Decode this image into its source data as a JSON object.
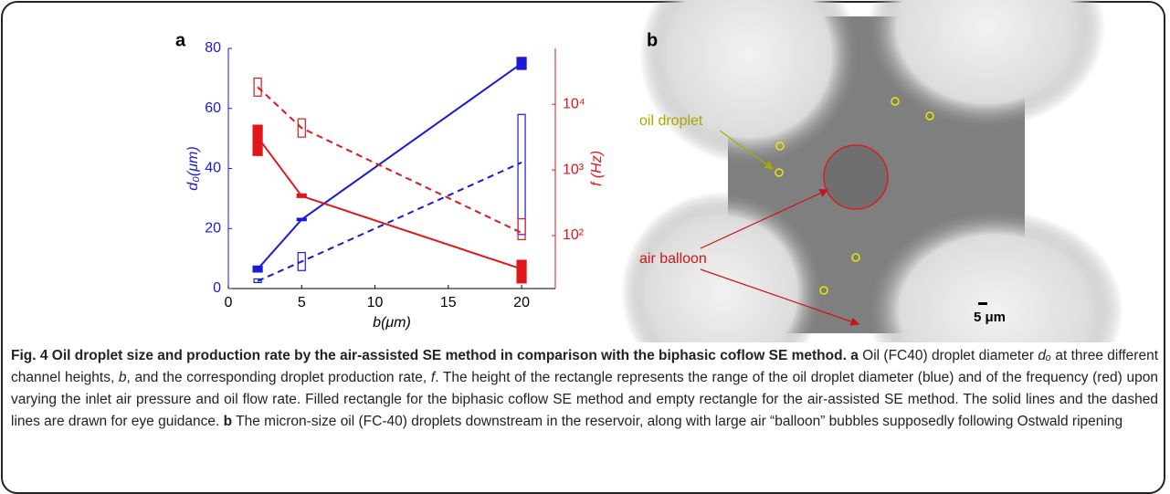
{
  "chart_data": {
    "type": "line",
    "panel_label": "a",
    "x": [
      2,
      5,
      20
    ],
    "xlim": [
      0,
      22.3
    ],
    "xticks": [
      0,
      5,
      10,
      15,
      20
    ],
    "xlabel": "b(μm)",
    "ylim": [
      0,
      80
    ],
    "yticks": [
      0,
      20,
      40,
      60,
      80
    ],
    "ylabel": "d₀(μm)",
    "ycolor": "#1a1ad6",
    "y2lim": [
      15.6,
      71000
    ],
    "y2scale": "log",
    "y2ticks": [
      {
        "value": 100,
        "label": "10²"
      },
      {
        "value": 1000,
        "label": "10³"
      },
      {
        "value": 10000,
        "label": "10⁴"
      }
    ],
    "y2label": "f (Hz)",
    "y2color": "#e0161b",
    "series": [
      {
        "color": "#1a1ad6",
        "style": "solid",
        "filled": true,
        "values": [
          6.5,
          23,
          75
        ],
        "low": [
          5.5,
          22.6,
          73
        ],
        "high": [
          7.5,
          23.4,
          77
        ]
      },
      {
        "color": "#1a1ad6",
        "style": "dashed",
        "filled": false,
        "values": [
          2.5,
          9,
          42
        ],
        "low": [
          2,
          6,
          18
        ],
        "high": [
          3.2,
          12,
          58
        ]
      },
      {
        "color": "#e0161b",
        "style": "solid",
        "filled": true,
        "axis": "y2",
        "values": [
          3160,
          400,
          31
        ],
        "low": [
          1660,
          380,
          19
        ],
        "high": [
          4800,
          430,
          42
        ]
      },
      {
        "color": "#e0161b",
        "style": "dashed",
        "filled": false,
        "axis": "y2",
        "values": [
          18300,
          4350,
          110
        ],
        "low": [
          13300,
          3160,
          87
        ],
        "high": [
          25000,
          6000,
          180
        ]
      }
    ]
  },
  "image": {
    "panel_label": "b",
    "oil_label": "oil droplet",
    "air_label": "air balloon",
    "scale_label": "5 μm"
  },
  "caption": {
    "runs": [
      {
        "text": "Fig. 4 Oil droplet size and production rate by the air-assisted SE method in comparison with the biphasic coflow SE method.",
        "style": "bold"
      },
      {
        "text": " a",
        "style": "bold"
      },
      {
        "text": " Oil (FC40) droplet diameter ",
        "style": "normal"
      },
      {
        "text": "dₒ",
        "style": "italic"
      },
      {
        "text": " at three different channel heights, ",
        "style": "normal"
      },
      {
        "text": "b",
        "style": "italic"
      },
      {
        "text": ", and the corresponding droplet production rate, ",
        "style": "normal"
      },
      {
        "text": "f",
        "style": "italic"
      },
      {
        "text": ". The height of the rectangle represents the range of the oil droplet diameter (blue) and of the frequency (red) upon varying the inlet air pressure and oil flow rate. Filled rectangle for the biphasic coflow SE method and empty rectangle for the air-assisted SE method. The solid lines and the dashed lines are drawn for eye guidance. ",
        "style": "normal"
      },
      {
        "text": "b",
        "style": "bold"
      },
      {
        "text": " The micron-size oil (FC-40) droplets downstream in the reservoir, along with large air “balloon” bubbles supposedly following Ostwald ripening",
        "style": "normal"
      }
    ]
  }
}
